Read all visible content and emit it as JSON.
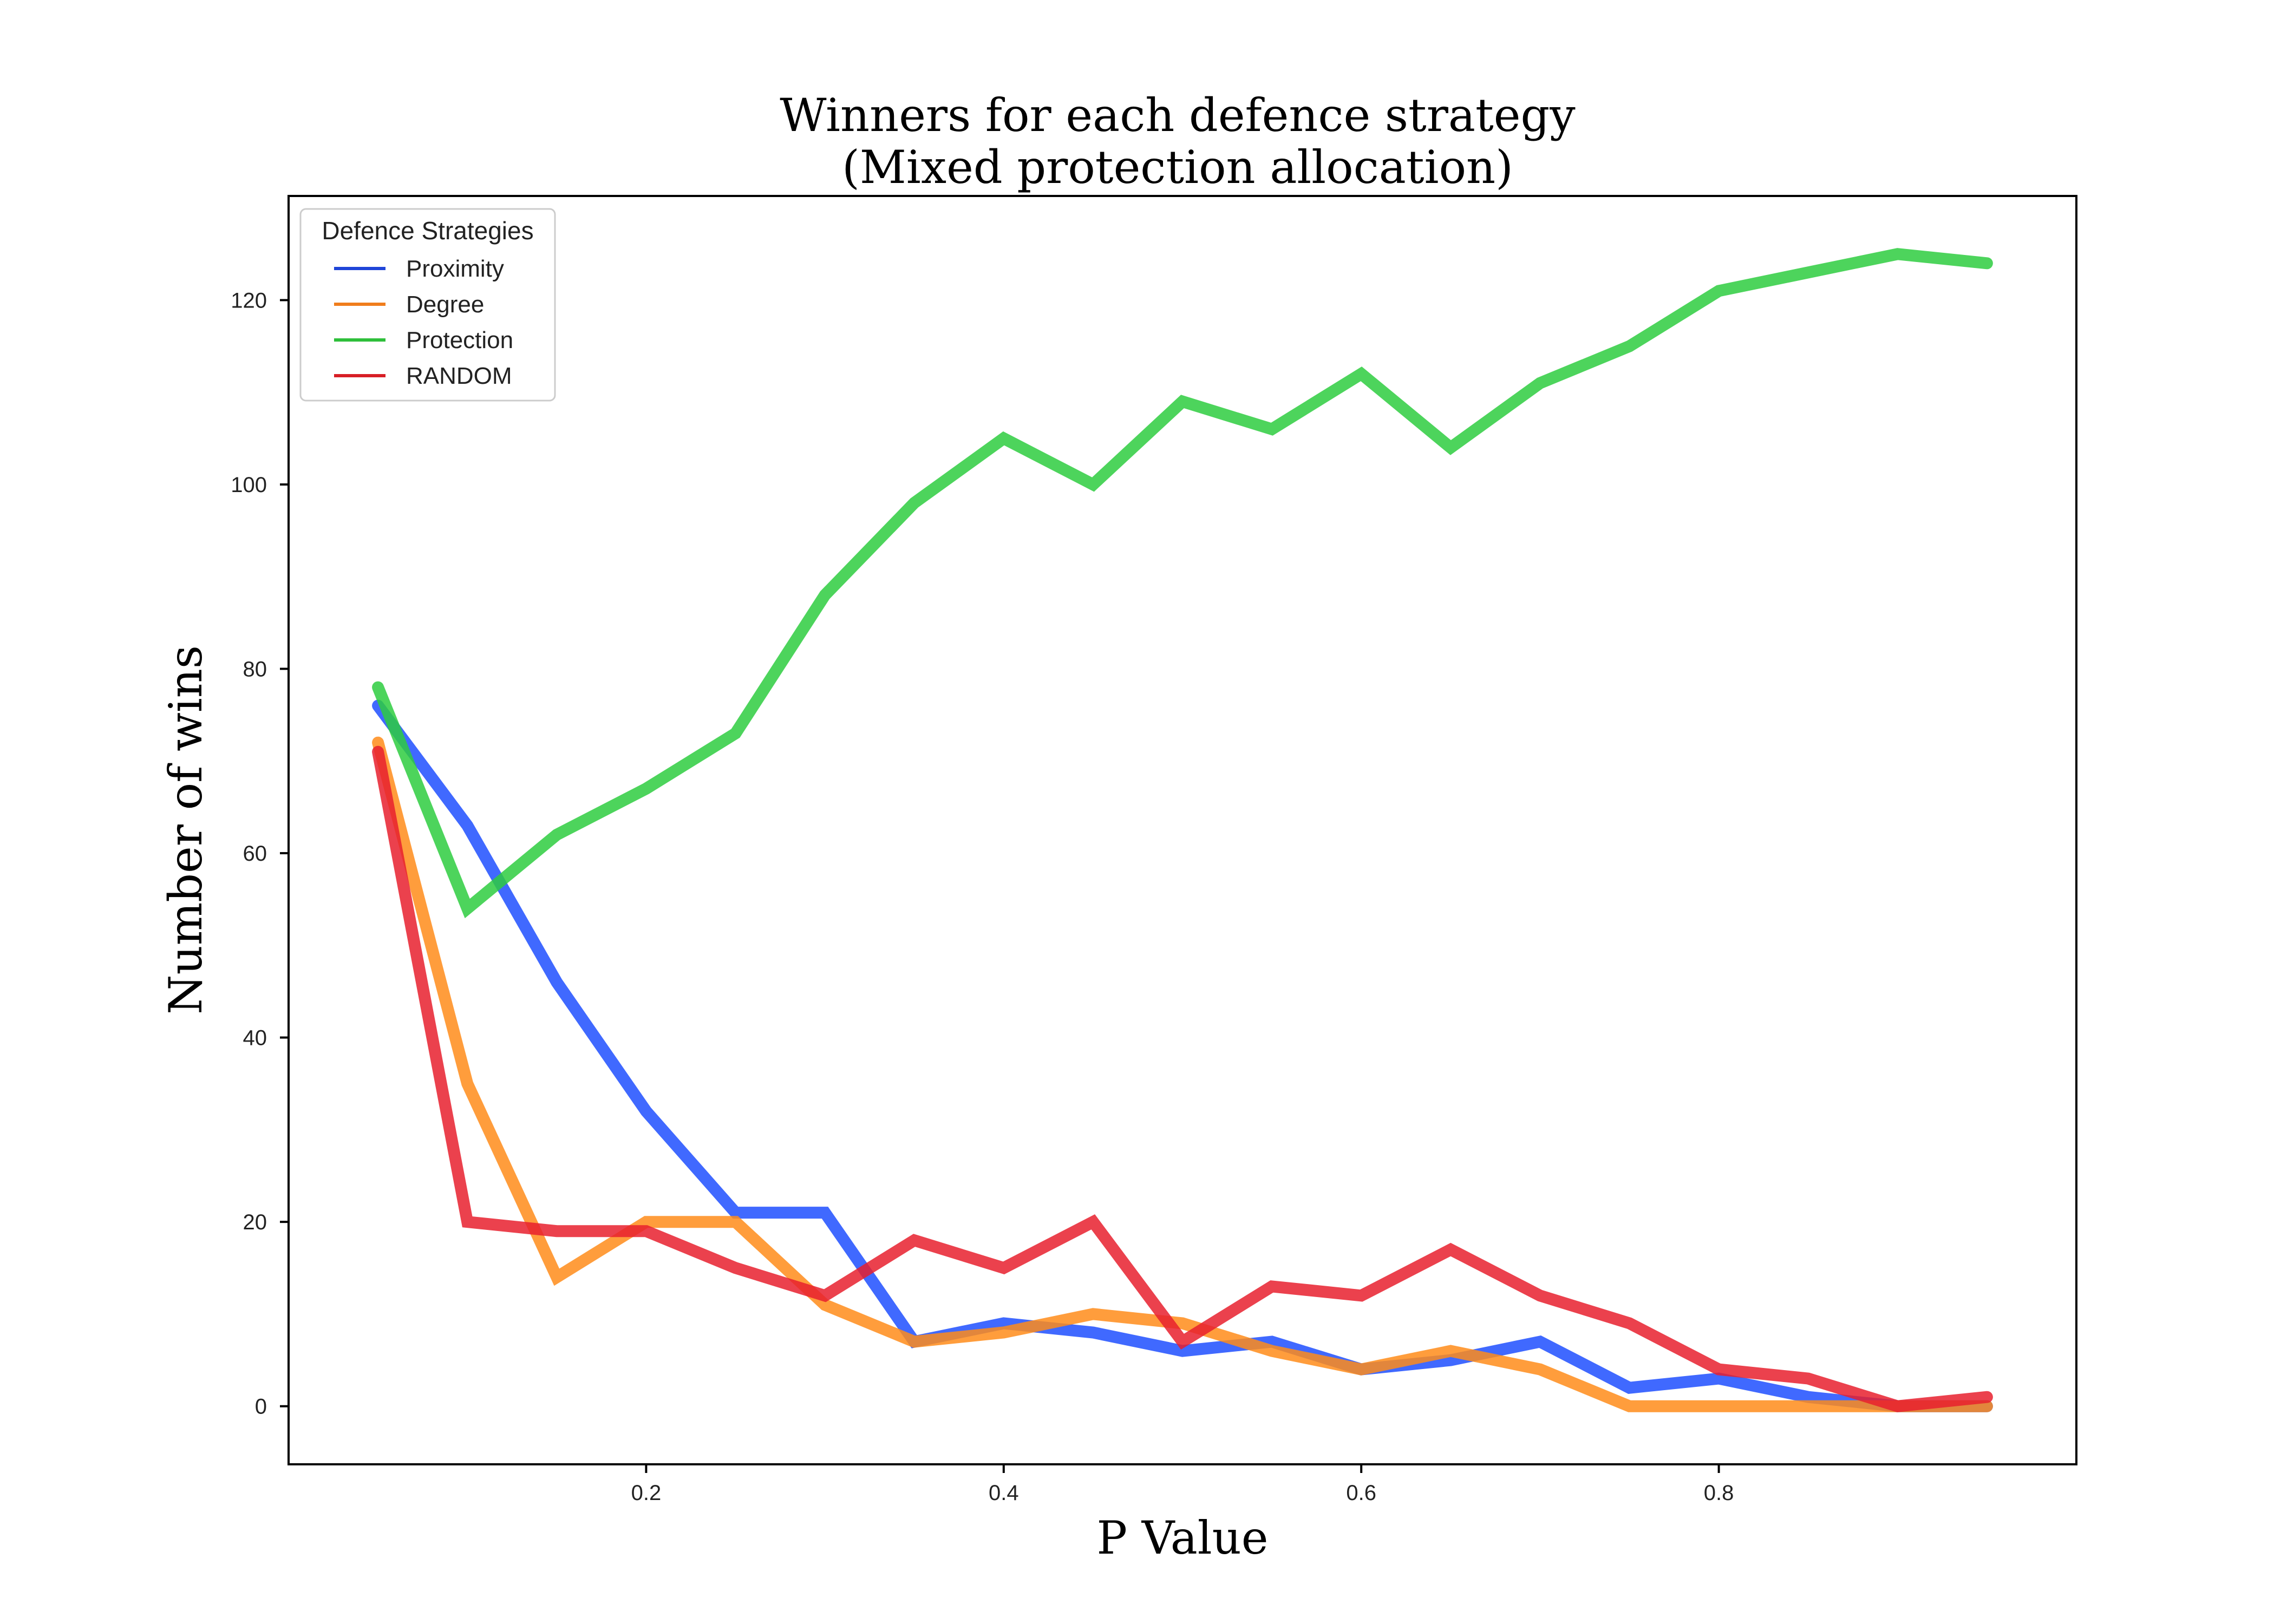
{
  "chart_data": {
    "type": "line",
    "title": "Winners for each defence strategy",
    "subtitle": "(Mixed protection allocation)",
    "xlabel": "P Value",
    "ylabel": "Number of wins",
    "xlim": [
      0.0,
      1.0
    ],
    "ylim": [
      -6.3,
      131.3
    ],
    "xticks": [
      "0.2",
      "0.4",
      "0.6",
      "0.8"
    ],
    "xtick_values": [
      0.2,
      0.4,
      0.6,
      0.8
    ],
    "yticks": [
      "0",
      "20",
      "40",
      "60",
      "80",
      "100",
      "120"
    ],
    "ytick_values": [
      0,
      20,
      40,
      60,
      80,
      100,
      120
    ],
    "grid": false,
    "legend": {
      "title": "Defence Strategies",
      "placement": "top-left"
    },
    "x": [
      0.05,
      0.1,
      0.15,
      0.2,
      0.25,
      0.3,
      0.35,
      0.4,
      0.45,
      0.5,
      0.55,
      0.6,
      0.65,
      0.7,
      0.75,
      0.8,
      0.85,
      0.9,
      0.95
    ],
    "series": [
      {
        "name": "Proximity",
        "color": "#1f4fff",
        "legend_color": "#1f45d8",
        "values": [
          76,
          63,
          46,
          32,
          21,
          21,
          7,
          9,
          8,
          6,
          7,
          4,
          5,
          7,
          2,
          3,
          1,
          0,
          0
        ]
      },
      {
        "name": "Degree",
        "color": "#ff8c1a",
        "legend_color": "#f07d1c",
        "values": [
          72,
          35,
          14,
          20,
          20,
          11,
          7,
          8,
          10,
          9,
          6,
          4,
          6,
          4,
          0,
          0,
          0,
          0,
          0
        ]
      },
      {
        "name": "Protection",
        "color": "#2ecc40",
        "legend_color": "#2ebf3a",
        "values": [
          78,
          54,
          62,
          67,
          73,
          88,
          98,
          105,
          100,
          109,
          106,
          112,
          104,
          111,
          115,
          121,
          123,
          125,
          124
        ]
      },
      {
        "name": "RANDOM",
        "color": "#e8202e",
        "legend_color": "#d81f26",
        "values": [
          71,
          20,
          19,
          19,
          15,
          12,
          18,
          15,
          20,
          7,
          13,
          12,
          17,
          12,
          9,
          4,
          3,
          0,
          1
        ]
      }
    ]
  }
}
